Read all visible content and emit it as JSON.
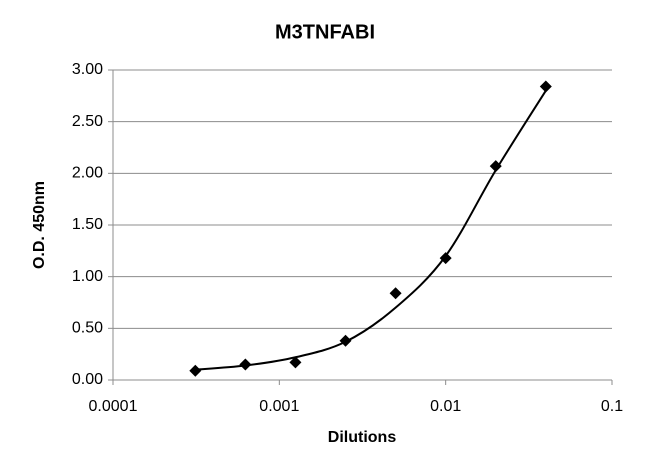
{
  "chart_data": {
    "type": "scatter",
    "title": "M3TNFABI",
    "x_label": "Dilutions",
    "y_label": "O.D. 450nm",
    "x": [
      0.0003125,
      0.000625,
      0.00125,
      0.0025,
      0.005,
      0.01,
      0.02,
      0.04
    ],
    "series": [
      {
        "color": "#000000",
        "marker": "diamond",
        "values": [
          0.09,
          0.15,
          0.17,
          0.38,
          0.84,
          1.18,
          2.07,
          2.84
        ]
      },
      {
        "color": "#000000",
        "marker": "none",
        "line": "smooth",
        "values": [
          0.1,
          0.14,
          0.22,
          0.37,
          0.7,
          1.2,
          2.03,
          2.8
        ]
      }
    ],
    "xscale": "log",
    "xlim": [
      0.0001,
      0.1
    ],
    "xticks": [
      0.0001,
      0.001,
      0.01,
      0.1
    ],
    "ylim": [
      0,
      3
    ],
    "yticks": [
      {
        "value": 0,
        "label": "0.00"
      },
      {
        "value": 0.5,
        "label": "0.50"
      },
      {
        "value": 1,
        "label": "1.00"
      },
      {
        "value": 1.5,
        "label": "1.50"
      },
      {
        "value": 2,
        "label": "2.00"
      },
      {
        "value": 2.5,
        "label": "2.50"
      },
      {
        "value": 3,
        "label": "3.00"
      }
    ],
    "grid": true
  }
}
